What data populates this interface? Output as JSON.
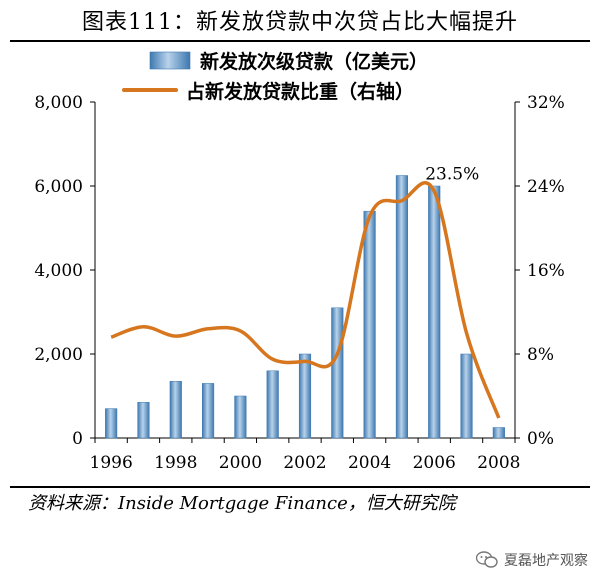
{
  "title": "图表111：新发放贷款中次贷占比大幅提升",
  "source": "资料来源：Inside Mortgage Finance，恒大研究院",
  "watermark": "夏磊地产观察",
  "colors": {
    "bar": "#3d78b0",
    "bar_light": "#b8d2ea",
    "line": "#d6761f"
  },
  "chart_data": {
    "type": "bar",
    "title": "",
    "categories": [
      "1996",
      "1997",
      "1998",
      "1999",
      "2000",
      "2001",
      "2002",
      "2003",
      "2004",
      "2005",
      "2006",
      "2007",
      "2008"
    ],
    "x_tick_labels": [
      "1996",
      "1998",
      "2000",
      "2002",
      "2004",
      "2006",
      "2008"
    ],
    "ylim": [
      0,
      8000
    ],
    "y_ticks": [
      "0",
      "2,000",
      "4,000",
      "6,000",
      "8,000"
    ],
    "y2lim": [
      0,
      32
    ],
    "y2_ticks": [
      "0%",
      "8%",
      "16%",
      "24%",
      "32%"
    ],
    "grid": false,
    "legend_position": "top-left",
    "series": [
      {
        "name": "新发放次级贷款（亿美元）",
        "type": "bar",
        "axis": "left",
        "values": [
          700,
          850,
          1350,
          1300,
          1000,
          1600,
          2000,
          3100,
          5400,
          6250,
          6000,
          2000,
          250
        ]
      },
      {
        "name": "占新发放贷款比重（右轴）",
        "type": "line",
        "axis": "right",
        "smooth": true,
        "values": [
          9.6,
          10.6,
          9.7,
          10.4,
          10.2,
          7.5,
          7.3,
          8.0,
          21.1,
          22.6,
          23.5,
          10.0,
          1.9
        ]
      }
    ],
    "annotations": [
      {
        "text": "23.5%",
        "category": "2006",
        "series": 1
      }
    ]
  }
}
